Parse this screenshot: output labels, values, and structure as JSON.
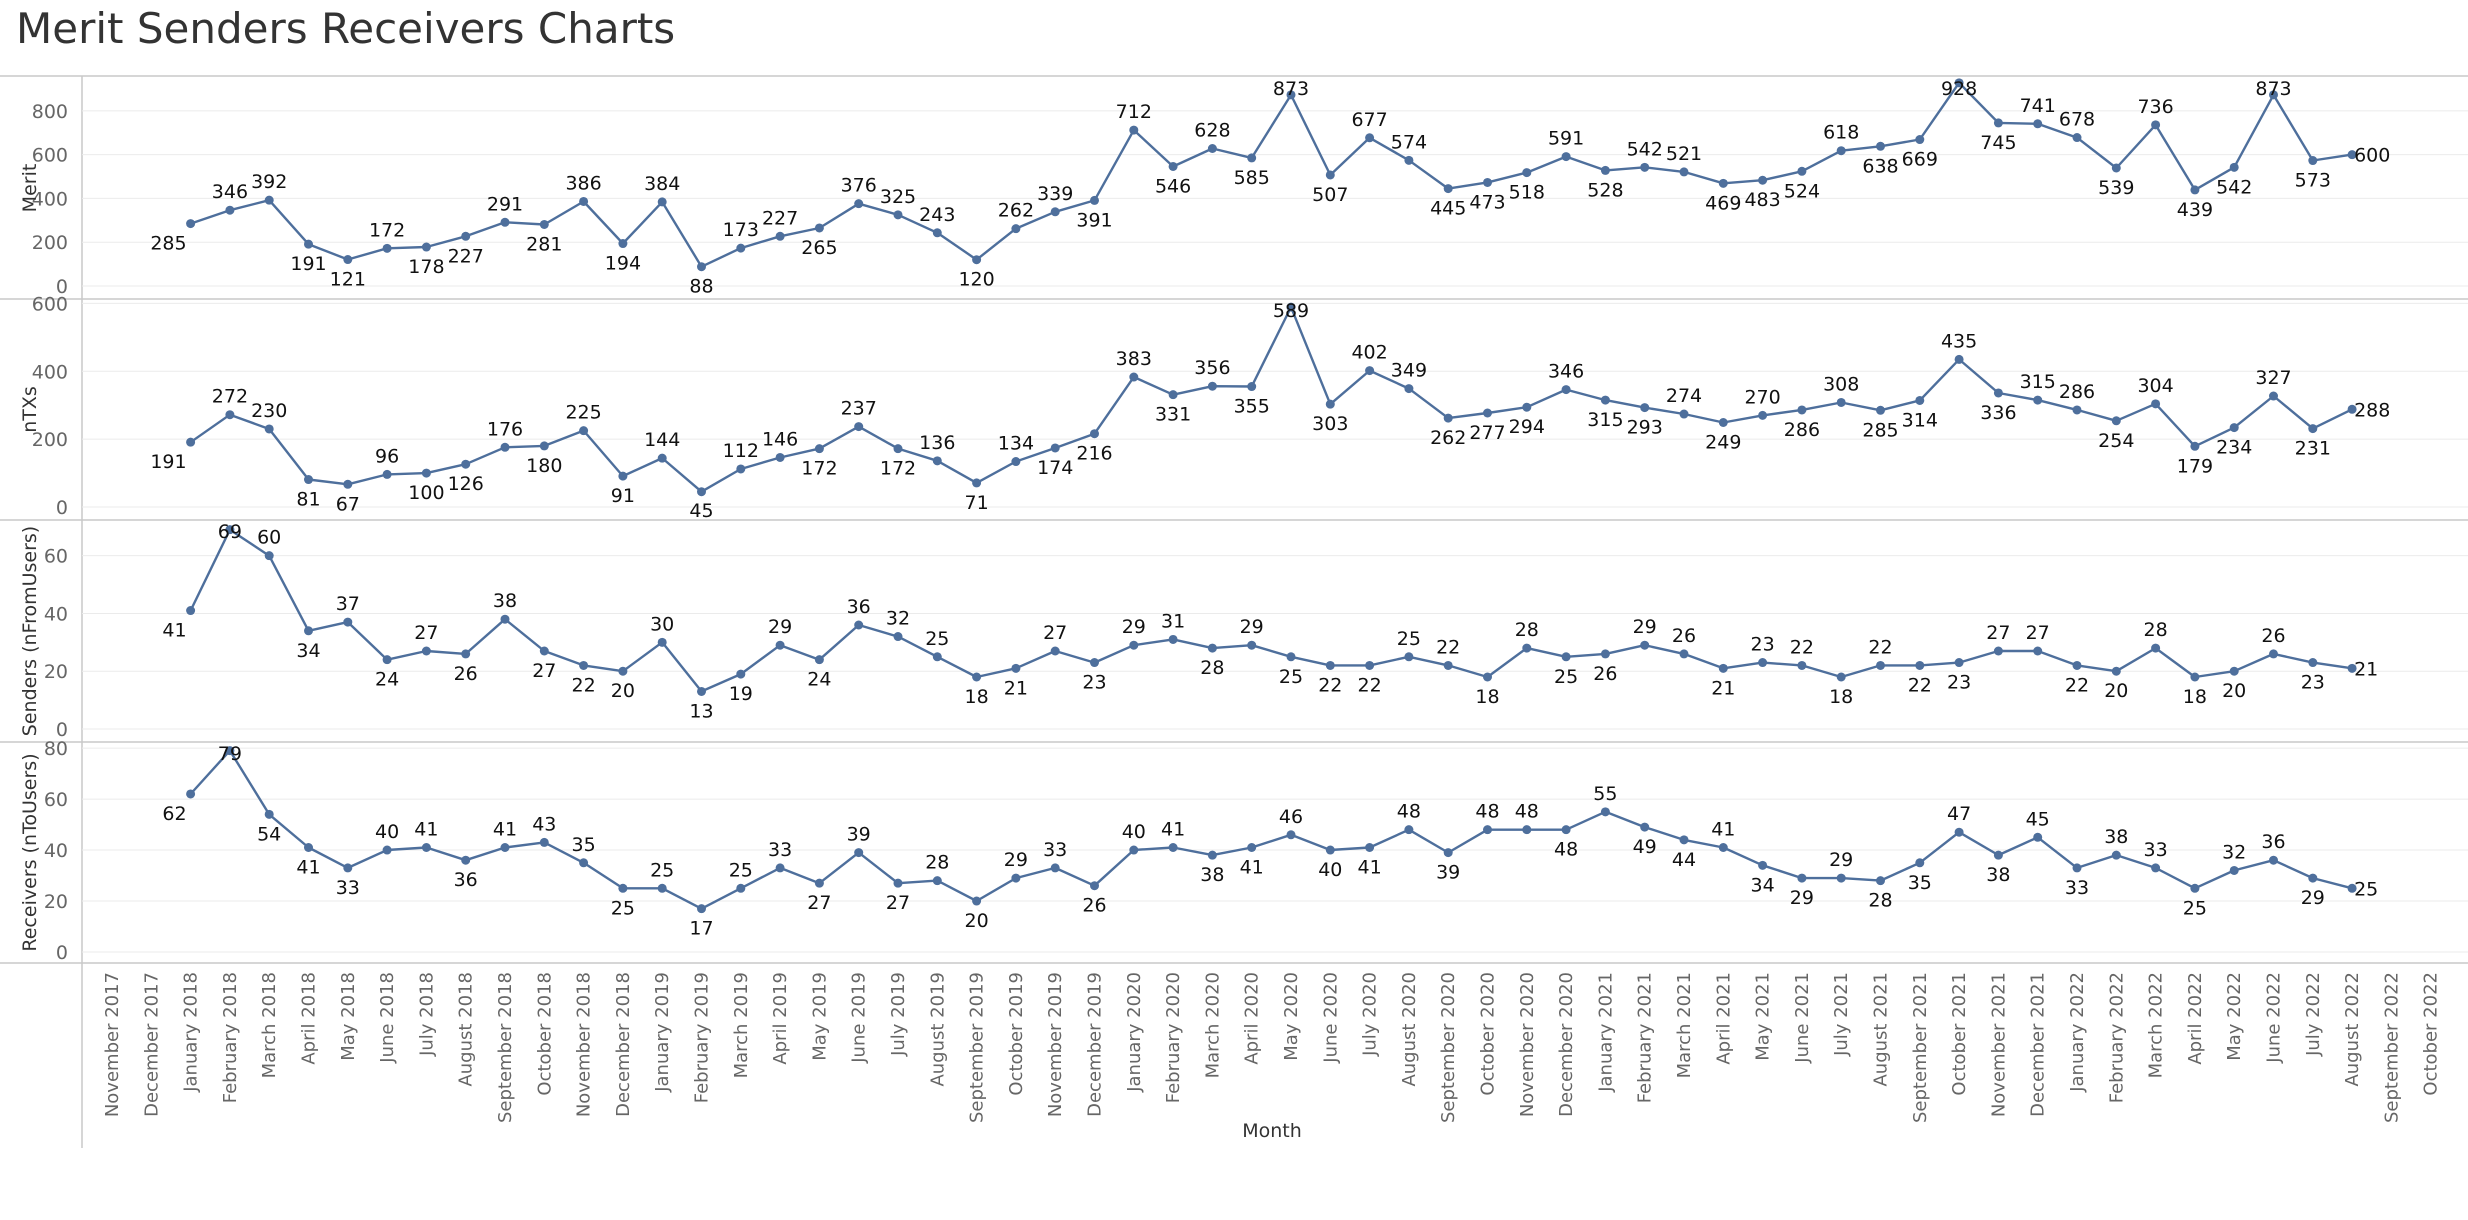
{
  "page": {
    "title": "Merit Senders Receivers Charts"
  },
  "colors": {
    "series": "#4e6f9c",
    "grid": "#ebebeb",
    "panel_border": "#c9c9c9",
    "text": "#333333"
  },
  "chart_data": {
    "type": "line",
    "title": "Merit Senders Receivers Charts",
    "xlabel": "Month",
    "grid": true,
    "categories": [
      "November 2017",
      "December 2017",
      "January 2018",
      "February 2018",
      "March 2018",
      "April 2018",
      "May 2018",
      "June 2018",
      "July 2018",
      "August 2018",
      "September 2018",
      "October 2018",
      "November 2018",
      "December 2018",
      "January 2019",
      "February 2019",
      "March 2019",
      "April 2019",
      "May 2019",
      "June 2019",
      "July 2019",
      "August 2019",
      "September 2019",
      "October 2019",
      "November 2019",
      "December 2019",
      "January 2020",
      "February 2020",
      "March 2020",
      "April 2020",
      "May 2020",
      "June 2020",
      "July 2020",
      "August 2020",
      "September 2020",
      "October 2020",
      "November 2020",
      "December 2020",
      "January 2021",
      "February 2021",
      "March 2021",
      "April 2021",
      "May 2021",
      "June 2021",
      "July 2021",
      "August 2021",
      "September 2021",
      "October 2021",
      "November 2021",
      "December 2021",
      "January 2022",
      "February 2022",
      "March 2022",
      "April 2022",
      "May 2022",
      "June 2022",
      "July 2022",
      "August 2022",
      "September 2022",
      "October 2022"
    ],
    "series": [
      {
        "name": "Merit",
        "ylim": [
          0,
          950
        ],
        "yticks": [
          0,
          200,
          400,
          600,
          800
        ],
        "values": [
          null,
          null,
          285,
          346,
          392,
          191,
          121,
          172,
          178,
          227,
          291,
          281,
          386,
          194,
          384,
          88,
          173,
          227,
          265,
          376,
          325,
          243,
          120,
          262,
          339,
          391,
          712,
          546,
          628,
          585,
          873,
          507,
          677,
          574,
          445,
          473,
          518,
          591,
          528,
          542,
          521,
          469,
          483,
          524,
          618,
          638,
          669,
          928,
          745,
          741,
          678,
          539,
          736,
          439,
          542,
          873,
          573,
          600,
          null,
          null
        ]
      },
      {
        "name": "nTXs",
        "ylim": [
          0,
          610
        ],
        "yticks": [
          0,
          200,
          400,
          600
        ],
        "values": [
          null,
          null,
          191,
          272,
          230,
          81,
          67,
          96,
          100,
          126,
          176,
          180,
          225,
          91,
          144,
          45,
          112,
          146,
          172,
          237,
          172,
          136,
          71,
          134,
          174,
          216,
          383,
          331,
          356,
          355,
          589,
          303,
          402,
          349,
          262,
          277,
          294,
          346,
          315,
          293,
          274,
          249,
          270,
          286,
          308,
          285,
          314,
          435,
          336,
          315,
          286,
          254,
          304,
          179,
          234,
          327,
          231,
          288,
          null,
          null
        ]
      },
      {
        "name": "Senders (nFromUsers)",
        "ylim": [
          0,
          72
        ],
        "yticks": [
          0,
          20,
          40,
          60
        ],
        "values": [
          null,
          null,
          41,
          69,
          60,
          34,
          37,
          24,
          27,
          26,
          38,
          27,
          22,
          20,
          30,
          13,
          19,
          29,
          24,
          36,
          32,
          25,
          18,
          21,
          27,
          23,
          29,
          31,
          28,
          29,
          25,
          22,
          22,
          25,
          22,
          18,
          28,
          25,
          26,
          29,
          26,
          21,
          23,
          22,
          18,
          22,
          22,
          23,
          27,
          27,
          22,
          20,
          28,
          18,
          20,
          26,
          23,
          21,
          null,
          null
        ]
      },
      {
        "name": "Receivers (nToUsers)",
        "ylim": [
          0,
          82
        ],
        "yticks": [
          0,
          20,
          40,
          60,
          80
        ],
        "values": [
          null,
          null,
          62,
          79,
          54,
          41,
          33,
          40,
          41,
          36,
          41,
          43,
          35,
          25,
          25,
          17,
          25,
          33,
          27,
          39,
          27,
          28,
          20,
          29,
          33,
          26,
          40,
          41,
          38,
          41,
          46,
          40,
          41,
          48,
          39,
          48,
          48,
          48,
          55,
          49,
          44,
          41,
          34,
          29,
          29,
          28,
          35,
          47,
          38,
          45,
          33,
          38,
          33,
          25,
          32,
          36,
          29,
          25,
          null,
          null
        ]
      }
    ]
  }
}
